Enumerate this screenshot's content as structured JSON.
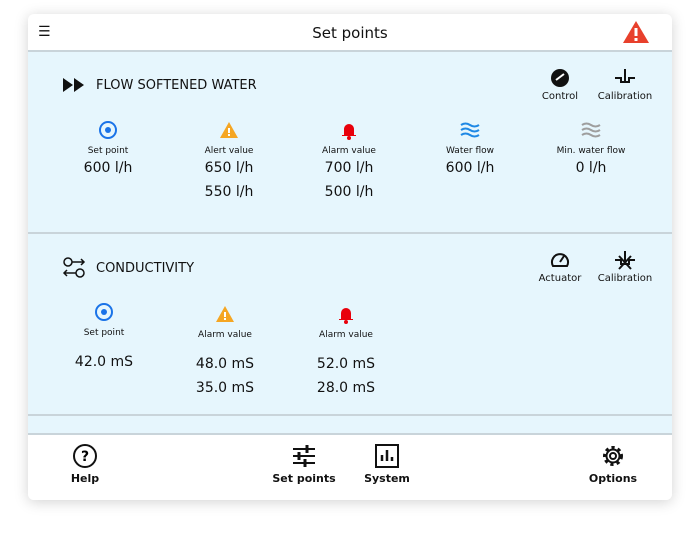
{
  "header": {
    "title": "Set points",
    "menu_icon": "hamburger-icon",
    "warning_icon": "warning-triangle-icon",
    "warning_color": "#e8402c"
  },
  "flow": {
    "title": "FLOW SOFTENED WATER",
    "actions": [
      {
        "label": "Control"
      },
      {
        "label": "Calibration"
      }
    ],
    "columns": [
      {
        "label": "Set point",
        "values": [
          "600 l/h"
        ]
      },
      {
        "label": "Alert value",
        "values": [
          "650 l/h",
          "550 l/h"
        ]
      },
      {
        "label": "Alarm value",
        "values": [
          "700 l/h",
          "500 l/h"
        ]
      },
      {
        "label": "Water flow",
        "values": [
          "600 l/h"
        ]
      },
      {
        "label": "Min. water flow",
        "values": [
          "0 l/h"
        ]
      }
    ]
  },
  "conductivity": {
    "title": "CONDUCTIVITY",
    "actions": [
      {
        "label": "Actuator"
      },
      {
        "label": "Calibration"
      }
    ],
    "columns": [
      {
        "label": "Set point",
        "values": [
          "42.0 mS"
        ]
      },
      {
        "label": "Alarm value",
        "values": [
          "48.0 mS",
          "35.0 mS"
        ]
      },
      {
        "label": "Alarm value",
        "values": [
          "52.0 mS",
          "28.0 mS"
        ]
      }
    ]
  },
  "footer": {
    "help": "Help",
    "set_points": "Set points",
    "system": "System",
    "options": "Options"
  },
  "colors": {
    "section_bg": "#e6f6fd",
    "setpoint": "#1a73e8",
    "alert": "#f5a623",
    "alarm": "#e8000b",
    "flow": "#1e88e5",
    "minflow": "#9e9e9e"
  }
}
